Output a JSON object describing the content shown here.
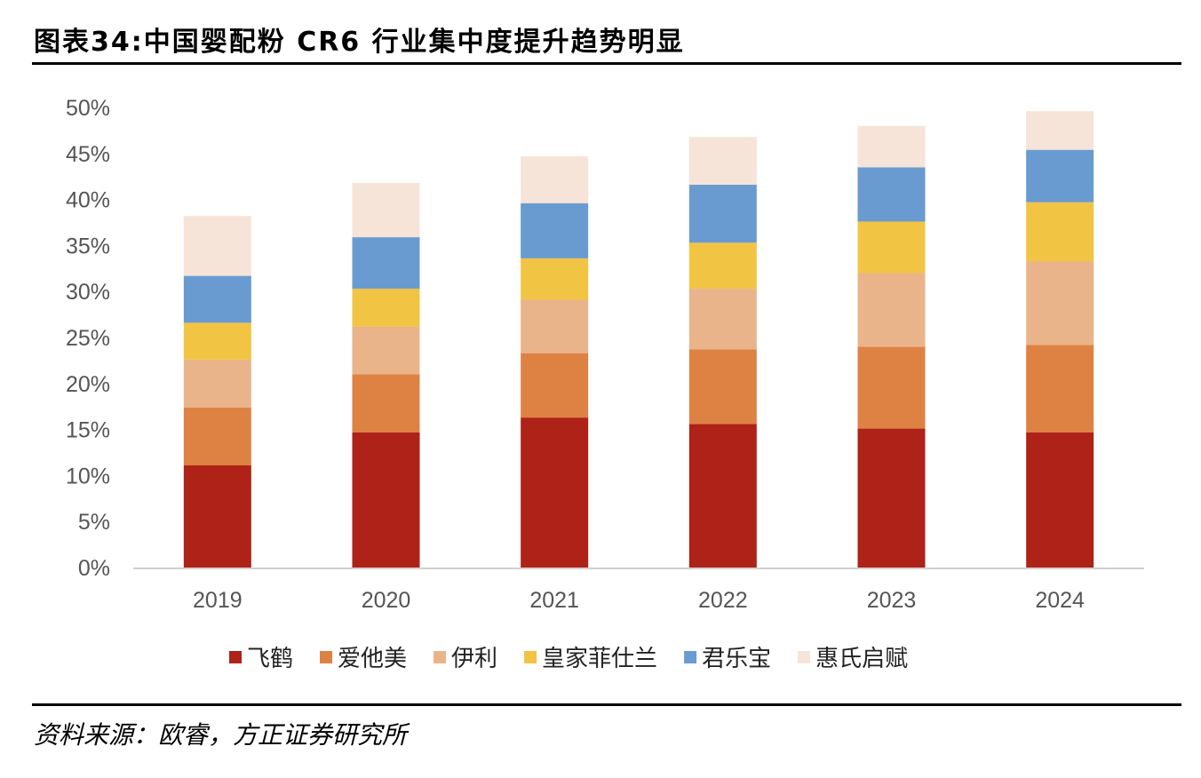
{
  "title": "图表34:中国婴配粉 CR6 行业集中度提升趋势明显",
  "source": "资料来源：欧睿，方正证券研究所",
  "chart_data": {
    "type": "bar",
    "stacked": true,
    "categories": [
      "2019",
      "2020",
      "2021",
      "2022",
      "2023",
      "2024"
    ],
    "y_ticks": [
      "0%",
      "5%",
      "10%",
      "15%",
      "20%",
      "25%",
      "30%",
      "35%",
      "40%",
      "45%",
      "50%"
    ],
    "ylim": [
      0,
      50
    ],
    "grid": false,
    "legend_position": "bottom",
    "series": [
      {
        "name": "飞鹤",
        "color": "#AE2218",
        "values": [
          11.1,
          14.7,
          16.3,
          15.6,
          15.1,
          14.7
        ]
      },
      {
        "name": "爱他美",
        "color": "#DE8244",
        "values": [
          6.3,
          6.3,
          7.0,
          8.1,
          8.9,
          9.5
        ]
      },
      {
        "name": "伊利",
        "color": "#EAB48A",
        "values": [
          5.2,
          5.2,
          5.8,
          6.6,
          8.0,
          9.1
        ]
      },
      {
        "name": "皇家菲仕兰",
        "color": "#F2C444",
        "values": [
          4.0,
          4.1,
          4.5,
          5.0,
          5.6,
          6.4
        ]
      },
      {
        "name": "君乐宝",
        "color": "#6A9BD0",
        "values": [
          5.1,
          5.6,
          6.0,
          6.3,
          5.9,
          5.7
        ]
      },
      {
        "name": "惠氏启赋",
        "color": "#F7E4D8",
        "values": [
          6.5,
          5.9,
          5.1,
          5.2,
          4.5,
          4.2
        ]
      }
    ]
  }
}
